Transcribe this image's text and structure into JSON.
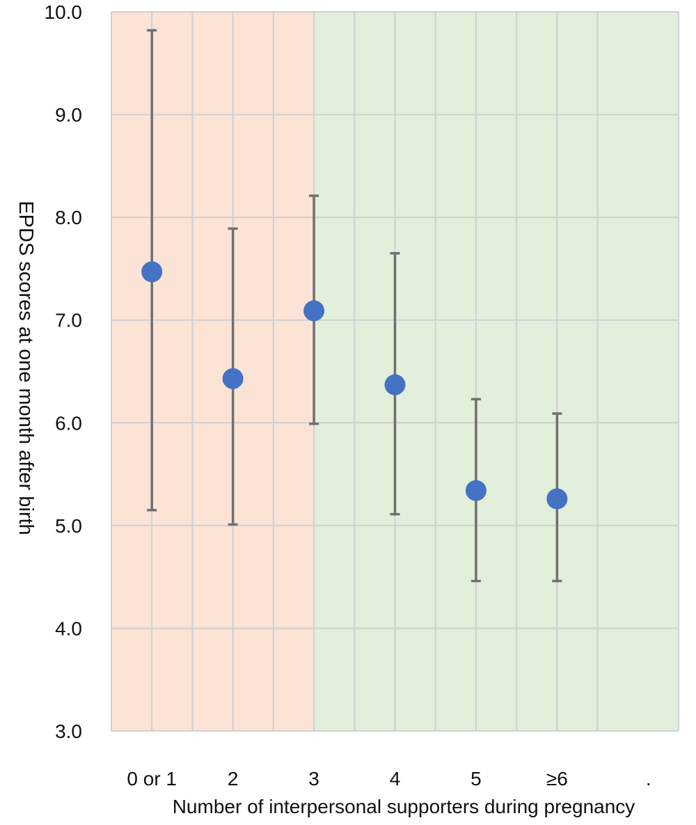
{
  "chart_data": {
    "type": "scatter",
    "title": "",
    "xlabel": "Number of interpersonal supporters during pregnancy",
    "ylabel": "EPDS scores at one month after birth",
    "categories": [
      "0 or 1",
      "2",
      "3",
      "4",
      "5",
      "≥6"
    ],
    "extra_tick_label": ".",
    "ylim": [
      3.0,
      10.0
    ],
    "yticks": [
      "3.0",
      "4.0",
      "5.0",
      "6.0",
      "7.0",
      "8.0",
      "9.0",
      "10.0"
    ],
    "grid": true,
    "series": [
      {
        "values": [
          7.47,
          6.43,
          7.09,
          6.37,
          5.34,
          5.26
        ],
        "lower": [
          5.15,
          5.01,
          5.99,
          5.11,
          4.46,
          4.46
        ],
        "upper": [
          9.82,
          7.89,
          8.21,
          7.65,
          6.23,
          6.09
        ],
        "color": "#4472c4"
      }
    ],
    "background_bands": [
      {
        "from_category": "0 or 1",
        "to_category": "2",
        "color": "#fbe3d6"
      },
      {
        "from_category": "3",
        "to_category": "≥6",
        "color": "#e2efda"
      }
    ],
    "errorbar_color": "#707070",
    "grid_color": "#d0d0d0"
  }
}
